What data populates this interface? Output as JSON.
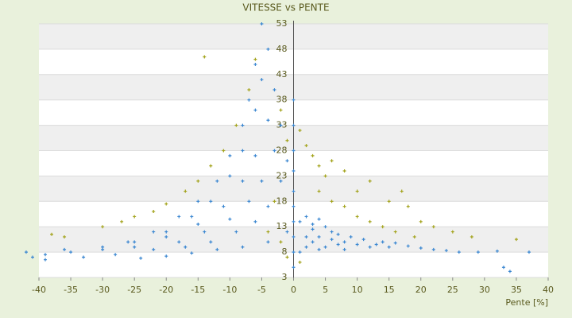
{
  "chart_data": {
    "type": "scatter",
    "title": "VITESSE vs PENTE",
    "x_label": "Pente [%]",
    "xlim": [
      -40,
      40
    ],
    "ylim": [
      3,
      53
    ],
    "xticks": [
      -40,
      -35,
      -30,
      -25,
      -20,
      -15,
      -10,
      -5,
      0,
      5,
      10,
      15,
      20,
      25,
      30,
      35,
      40
    ],
    "yticks": [
      3,
      8,
      13,
      18,
      23,
      28,
      33,
      38,
      43,
      48,
      53
    ],
    "grid": true,
    "series": [
      {
        "color": "#3b87d1",
        "x": [
          -5,
          -6,
          -7,
          -8,
          -10,
          -12,
          -15,
          -18,
          -22,
          -26,
          -30,
          -35,
          -39,
          -4,
          -5,
          -6,
          -8,
          -10,
          -13,
          -16,
          -20,
          -25,
          -30,
          -3,
          -4,
          -6,
          -8,
          -11,
          -15,
          -20,
          -25,
          -2,
          -3,
          -5,
          -7,
          -10,
          -14,
          -18,
          -22,
          -1,
          -2,
          -4,
          -6,
          -9,
          -13,
          -17,
          -42,
          -41,
          -39,
          -36,
          -33,
          -28,
          -24,
          -20,
          -16,
          -12,
          -8,
          -4,
          -1,
          0,
          0,
          0,
          0,
          0,
          0,
          0,
          0,
          0,
          0,
          1,
          2,
          2,
          3,
          3,
          4,
          4,
          5,
          5,
          6,
          6,
          7,
          7,
          8,
          8,
          9,
          10,
          11,
          12,
          13,
          14,
          15,
          16,
          18,
          20,
          22,
          24,
          26,
          29,
          32,
          37,
          33,
          34,
          1,
          2,
          3,
          4
        ],
        "values": [
          53,
          45,
          38,
          33,
          27,
          22,
          18,
          15,
          12,
          10,
          9,
          8,
          7.5,
          48,
          42,
          36,
          28,
          23,
          18,
          15,
          12,
          10,
          8.5,
          40,
          34,
          27,
          22,
          17,
          13.5,
          11,
          9,
          33,
          28,
          22,
          18,
          14.5,
          12,
          10,
          8.5,
          26,
          22,
          17,
          14,
          12,
          10,
          9,
          8,
          7,
          6.5,
          8.5,
          7,
          7.5,
          6.8,
          7.2,
          7.8,
          8.5,
          9,
          10,
          12,
          5,
          8,
          11,
          14,
          17,
          20,
          24,
          28,
          33,
          38,
          8,
          9,
          11,
          10,
          12.5,
          8.5,
          11,
          13,
          9,
          10.5,
          12,
          9.5,
          11.5,
          10,
          8.5,
          11,
          9.5,
          10.5,
          9,
          9.5,
          10,
          9,
          9.8,
          9.2,
          8.8,
          8.5,
          8.3,
          8,
          8,
          8.2,
          8,
          5,
          4.2,
          14,
          15,
          13.5,
          14.5
        ]
      },
      {
        "color": "#a3a31c",
        "x": [
          -38,
          -36,
          -30,
          -27,
          -25,
          -22,
          -20,
          -17,
          -15,
          -13,
          -11,
          -9,
          -7,
          -6,
          -14,
          -2,
          -1,
          1,
          2,
          3,
          4,
          5,
          6,
          8,
          10,
          12,
          15,
          17,
          18,
          20,
          22,
          25,
          28,
          35,
          4,
          6,
          8,
          10,
          12,
          14,
          16,
          19,
          -3,
          -4,
          -2,
          1,
          -1
        ],
        "values": [
          11.5,
          11,
          13,
          14,
          15,
          16,
          17.5,
          20,
          22,
          25,
          28,
          33,
          40,
          46,
          46.5,
          36,
          30,
          32,
          29,
          27,
          25,
          23,
          26,
          24,
          20,
          22,
          18,
          20,
          17,
          14,
          13,
          12,
          11,
          10.5,
          20,
          18,
          17,
          15,
          14,
          13,
          12,
          11,
          18,
          12,
          10,
          6,
          7
        ]
      }
    ]
  }
}
